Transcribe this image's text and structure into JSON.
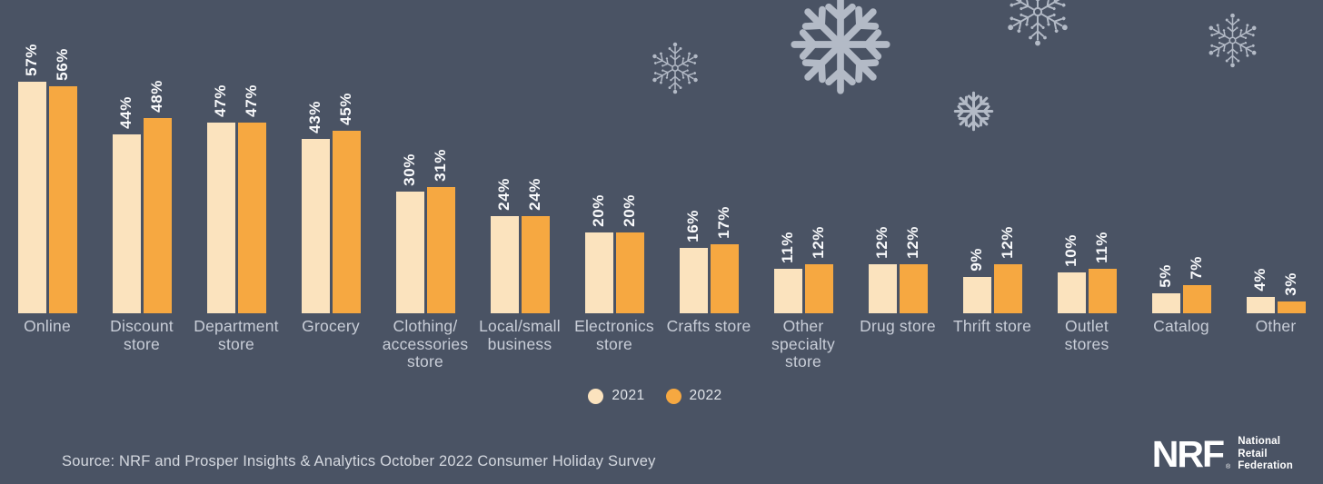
{
  "chart_data": {
    "type": "bar",
    "title": "",
    "categories": [
      "Online",
      "Discount\nstore",
      "Department\nstore",
      "Grocery",
      "Clothing/\naccessories\nstore",
      "Local/small\nbusiness",
      "Electronics\nstore",
      "Crafts store",
      "Other\nspecialty\nstore",
      "Drug store",
      "Thrift store",
      "Outlet\nstores",
      "Catalog",
      "Other"
    ],
    "series": [
      {
        "name": "2021",
        "color": "#FBE3BE",
        "values": [
          57,
          44,
          47,
          43,
          30,
          24,
          20,
          16,
          11,
          12,
          9,
          10,
          5,
          4
        ]
      },
      {
        "name": "2022",
        "color": "#F6A841",
        "values": [
          56,
          48,
          47,
          45,
          31,
          24,
          20,
          17,
          12,
          12,
          12,
          11,
          7,
          3
        ]
      }
    ],
    "value_suffix": "%",
    "value_labels": "rotated-above-bars",
    "grid": false,
    "axes_visible": false,
    "legend_position": "bottom-center"
  },
  "legend": {
    "items": [
      {
        "label": "2021",
        "color": "#FBE3BE"
      },
      {
        "label": "2022",
        "color": "#F6A841"
      }
    ]
  },
  "source": {
    "text": "Source: NRF and Prosper Insights & Analytics October 2022 Consumer Holiday Survey"
  },
  "branding": {
    "logo_text": "NRF",
    "registered_mark": "®",
    "tagline_lines": [
      "National",
      "Retail",
      "Federation"
    ]
  },
  "icons": {
    "snowflake_icon": "❄"
  },
  "colors": {
    "background": "#4A5364",
    "bar_2021": "#FBE3BE",
    "bar_2022": "#F6A841",
    "value_label": "#FAFBFD",
    "category_label": "#C9CED8",
    "source_text": "#D5D9E0",
    "snowflake": "#B3BAC6"
  }
}
